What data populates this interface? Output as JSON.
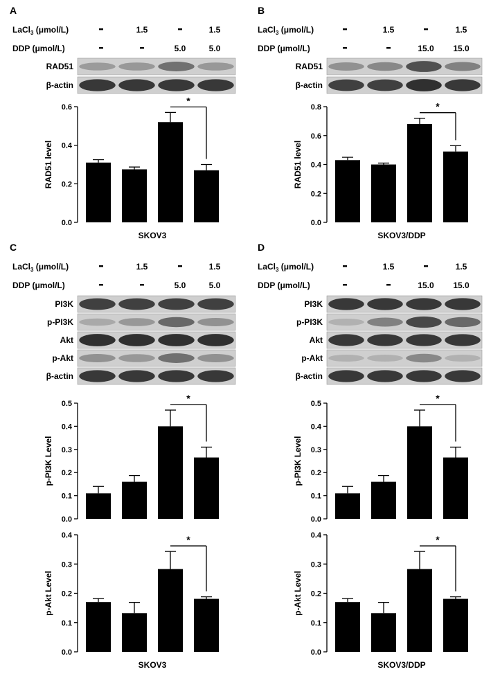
{
  "figure": {
    "panels": [
      {
        "letter": "A",
        "conditions": [
          {
            "label": "LaCl",
            "sub": "3",
            "unit": " (μmol/L)",
            "values": [
              "-",
              "1.5",
              "-",
              "1.5"
            ]
          },
          {
            "label": "DDP (μmol/L)",
            "sub": "",
            "unit": "",
            "values": [
              "-",
              "-",
              "5.0",
              "5.0"
            ]
          }
        ],
        "blots": [
          {
            "label": "RAD51",
            "intensity": [
              0.28,
              0.3,
              0.55,
              0.3
            ]
          },
          {
            "label": "β-actin",
            "intensity": [
              0.9,
              0.9,
              0.9,
              0.9
            ]
          }
        ],
        "cell_line": "SKOV3"
      },
      {
        "letter": "B",
        "conditions": [
          {
            "label": "LaCl",
            "sub": "3",
            "unit": " (μmol/L)",
            "values": [
              "-",
              "1.5",
              "-",
              "1.5"
            ]
          },
          {
            "label": "DDP (μmol/L)",
            "sub": "",
            "unit": "",
            "values": [
              "-",
              "-",
              "15.0",
              "15.0"
            ]
          }
        ],
        "blots": [
          {
            "label": "RAD51",
            "intensity": [
              0.35,
              0.4,
              0.75,
              0.45
            ]
          },
          {
            "label": "β-actin",
            "intensity": [
              0.85,
              0.85,
              0.95,
              0.9
            ]
          }
        ],
        "cell_line": "SKOV3/DDP"
      },
      {
        "letter": "C",
        "conditions": [
          {
            "label": "LaCl",
            "sub": "3",
            "unit": " (μmol/L)",
            "values": [
              "-",
              "1.5",
              "-",
              "1.5"
            ]
          },
          {
            "label": "DDP (μmol/L)",
            "sub": "",
            "unit": "",
            "values": [
              "-",
              "-",
              "5.0",
              "5.0"
            ]
          }
        ],
        "blots": [
          {
            "label": "PI3K",
            "intensity": [
              0.85,
              0.85,
              0.85,
              0.85
            ]
          },
          {
            "label": "p-PI3K",
            "intensity": [
              0.2,
              0.3,
              0.6,
              0.35
            ]
          },
          {
            "label": "Akt",
            "intensity": [
              0.95,
              0.95,
              0.95,
              0.95
            ]
          },
          {
            "label": "p-Akt",
            "intensity": [
              0.35,
              0.3,
              0.55,
              0.35
            ]
          },
          {
            "label": "β-actin",
            "intensity": [
              0.9,
              0.9,
              0.9,
              0.9
            ]
          }
        ],
        "cell_line": "SKOV3"
      },
      {
        "letter": "D",
        "conditions": [
          {
            "label": "LaCl",
            "sub": "3",
            "unit": " (μmol/L)",
            "values": [
              "-",
              "1.5",
              "-",
              "1.5"
            ]
          },
          {
            "label": "DDP (μmol/L)",
            "sub": "",
            "unit": "",
            "values": [
              "-",
              "-",
              "15.0",
              "15.0"
            ]
          }
        ],
        "blots": [
          {
            "label": "PI3K",
            "intensity": [
              0.9,
              0.9,
              0.9,
              0.9
            ]
          },
          {
            "label": "p-PI3K",
            "intensity": [
              0.15,
              0.45,
              0.8,
              0.6
            ]
          },
          {
            "label": "Akt",
            "intensity": [
              0.9,
              0.9,
              0.9,
              0.9
            ]
          },
          {
            "label": "p-Akt",
            "intensity": [
              0.15,
              0.15,
              0.4,
              0.15
            ]
          },
          {
            "label": "β-actin",
            "intensity": [
              0.9,
              0.9,
              0.9,
              0.9
            ]
          }
        ],
        "cell_line": "SKOV3/DDP"
      }
    ]
  },
  "chart_data": [
    {
      "panel": "A",
      "type": "bar",
      "ylabel": "RAD51 level",
      "ylim": [
        0,
        0.6
      ],
      "yticks": [
        "0.0",
        "0.2",
        "0.4",
        "0.6"
      ],
      "values": [
        0.31,
        0.275,
        0.52,
        0.27
      ],
      "errors": [
        0.015,
        0.012,
        0.05,
        0.03
      ],
      "significance": {
        "from": 2,
        "to": 3,
        "label": "*"
      },
      "xlabel": "SKOV3"
    },
    {
      "panel": "B",
      "type": "bar",
      "ylabel": "RAD51 level",
      "ylim": [
        0,
        0.8
      ],
      "yticks": [
        "0.0",
        "0.2",
        "0.4",
        "0.6",
        "0.8"
      ],
      "values": [
        0.43,
        0.4,
        0.68,
        0.49
      ],
      "errors": [
        0.02,
        0.01,
        0.04,
        0.04
      ],
      "significance": {
        "from": 2,
        "to": 3,
        "label": "*"
      },
      "xlabel": "SKOV3/DDP"
    },
    {
      "panel": "C",
      "type": "bar",
      "ylabel": "p-PI3K Level",
      "ylim": [
        0,
        0.5
      ],
      "yticks": [
        "0.0",
        "0.1",
        "0.2",
        "0.3",
        "0.4",
        "0.5"
      ],
      "values": [
        0.11,
        0.16,
        0.4,
        0.265
      ],
      "errors": [
        0.03,
        0.027,
        0.07,
        0.045
      ],
      "significance": {
        "from": 2,
        "to": 3,
        "label": "*"
      },
      "xlabel": ""
    },
    {
      "panel": "C",
      "type": "bar",
      "ylabel": "p-Akt Level",
      "ylim": [
        0,
        0.4
      ],
      "yticks": [
        "0.0",
        "0.1",
        "0.2",
        "0.3",
        "0.4"
      ],
      "values": [
        0.17,
        0.132,
        0.283,
        0.181
      ],
      "errors": [
        0.012,
        0.037,
        0.06,
        0.007
      ],
      "significance": {
        "from": 2,
        "to": 3,
        "label": "*"
      },
      "xlabel": "SKOV3"
    },
    {
      "panel": "D",
      "type": "bar",
      "ylabel": "p-PI3K Level",
      "ylim": [
        0,
        0.5
      ],
      "yticks": [
        "0.0",
        "0.1",
        "0.2",
        "0.3",
        "0.4",
        "0.5"
      ],
      "values": [
        0.11,
        0.16,
        0.4,
        0.265
      ],
      "errors": [
        0.03,
        0.027,
        0.07,
        0.045
      ],
      "significance": {
        "from": 2,
        "to": 3,
        "label": "*"
      },
      "xlabel": ""
    },
    {
      "panel": "D",
      "type": "bar",
      "ylabel": "p-Akt Level",
      "ylim": [
        0,
        0.4
      ],
      "yticks": [
        "0.0",
        "0.1",
        "0.2",
        "0.3",
        "0.4"
      ],
      "values": [
        0.17,
        0.132,
        0.283,
        0.181
      ],
      "errors": [
        0.012,
        0.037,
        0.06,
        0.007
      ],
      "significance": {
        "from": 2,
        "to": 3,
        "label": "*"
      },
      "xlabel": "SKOV3/DDP"
    }
  ]
}
